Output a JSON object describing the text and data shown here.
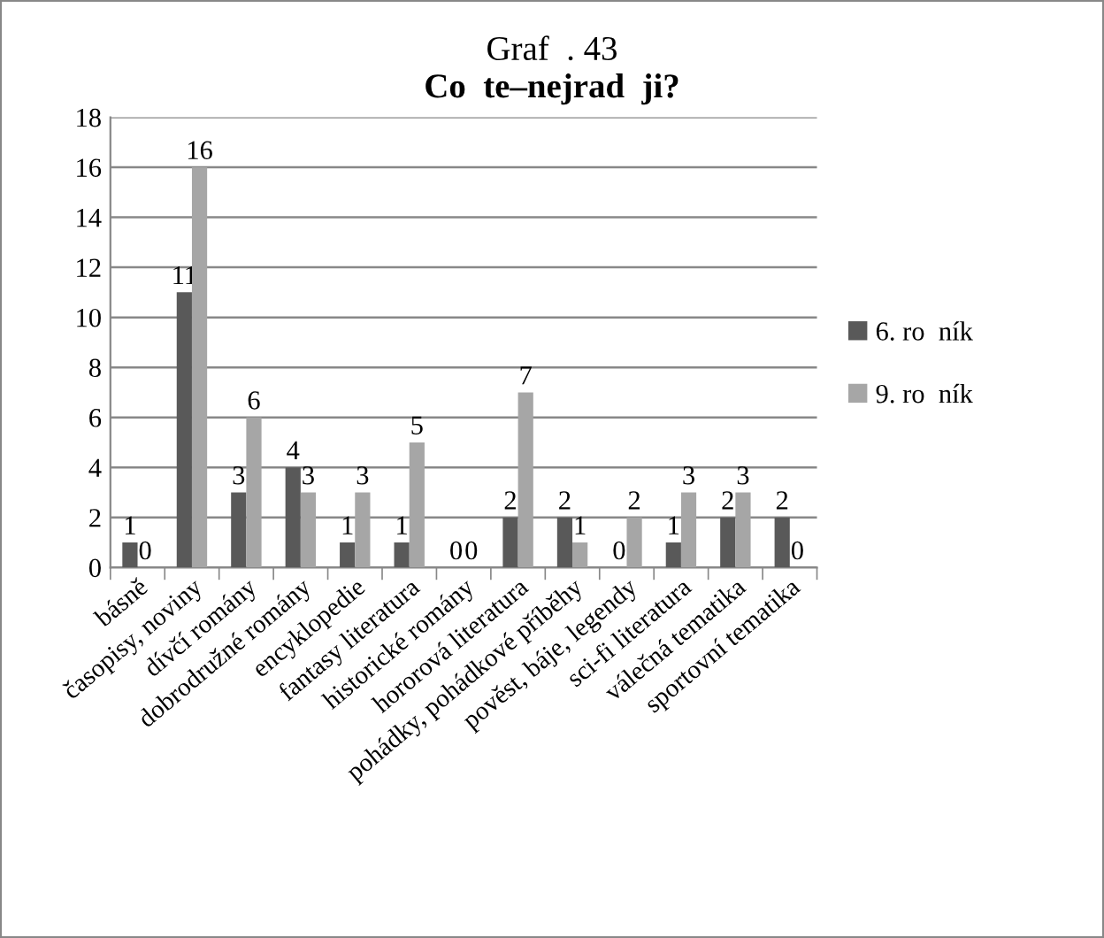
{
  "chart_data": {
    "type": "bar",
    "title": "Graf  . 43",
    "subtitle": "Co  te–nejrad  ji?",
    "categories": [
      "básně",
      "časopisy, noviny",
      "dívčí romány",
      "dobrodružné romány",
      "encyklopedie",
      "fantasy literatura",
      "historické romány",
      "hororová literatura",
      "pohádky, pohádkové příběhy",
      "pověst, báje, legendy",
      "sci-fi literatura",
      "válečná tematika",
      "sportovní tematika"
    ],
    "series": [
      {
        "name": "6. ro  ník",
        "color": "#595959",
        "values": [
          1,
          11,
          3,
          4,
          1,
          1,
          0,
          2,
          2,
          0,
          1,
          2,
          2
        ]
      },
      {
        "name": "9. ro  ník",
        "color": "#a6a6a6",
        "values": [
          0,
          16,
          6,
          3,
          3,
          5,
          0,
          7,
          1,
          2,
          3,
          3,
          0
        ]
      }
    ],
    "ylim": [
      0,
      18
    ],
    "yticks": [
      0,
      2,
      4,
      6,
      8,
      10,
      12,
      14,
      16,
      18
    ],
    "grid": "y",
    "legend": "right",
    "data_labels": true
  }
}
